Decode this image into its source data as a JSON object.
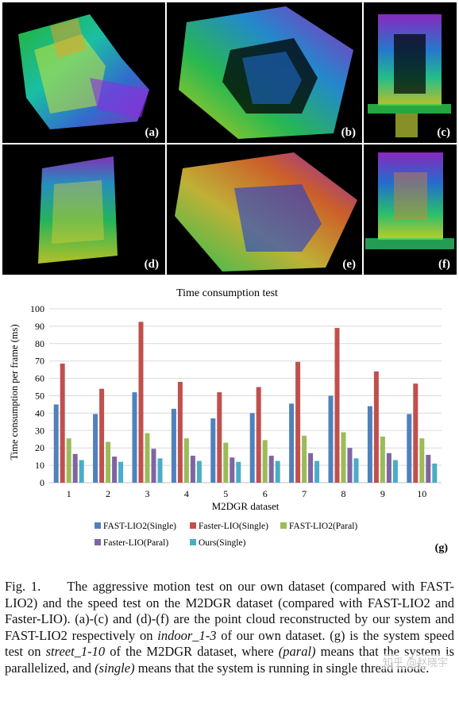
{
  "panels": [
    {
      "label": "(a)"
    },
    {
      "label": "(b)"
    },
    {
      "label": "(c)"
    },
    {
      "label": "(d)"
    },
    {
      "label": "(e)"
    },
    {
      "label": "(f)"
    }
  ],
  "chart_label": "(g)",
  "chart_data": {
    "type": "bar",
    "title": "Time consumption test",
    "xlabel": "M2DGR dataset",
    "ylabel": "Time consumption per frame (ms)",
    "ylim": [
      0,
      100
    ],
    "yticks": [
      0,
      10,
      20,
      30,
      40,
      50,
      60,
      70,
      80,
      90,
      100
    ],
    "grid": "horizontal",
    "legend_position": "bottom",
    "categories": [
      "1",
      "2",
      "3",
      "4",
      "5",
      "6",
      "7",
      "8",
      "9",
      "10"
    ],
    "series": [
      {
        "name": "FAST-LIO2(Single)",
        "color": "#4f81bd",
        "values": [
          45,
          39.5,
          52,
          42.5,
          37,
          40,
          45.5,
          50,
          44,
          39.5
        ]
      },
      {
        "name": "Faster-LIO(Single)",
        "color": "#c0504d",
        "values": [
          68.5,
          54,
          92.5,
          58,
          52,
          55,
          69.5,
          89,
          64,
          57
        ]
      },
      {
        "name": "FAST-LIO2(Paral)",
        "color": "#9bbb59",
        "values": [
          25.5,
          23.5,
          28.5,
          25.5,
          23,
          24.5,
          27,
          29,
          26.5,
          25.5
        ]
      },
      {
        "name": "Faster-LIO(Paral)",
        "color": "#8064a2",
        "values": [
          16.5,
          15,
          19.5,
          15.5,
          14.5,
          15.5,
          17,
          20,
          17,
          16
        ]
      },
      {
        "name": "Ours(Single)",
        "color": "#4bacc6",
        "values": [
          13,
          12,
          14,
          12.5,
          12,
          12.5,
          12.5,
          14,
          13,
          11
        ]
      }
    ]
  },
  "caption": {
    "prefix": "Fig. 1.",
    "part1": "The aggressive motion test on our own dataset (compared with FAST-LIO2) and the speed test on the M2DGR dataset (compared with FAST-LIO2 and Faster-LIO). (a)-(c) and (d)-(f) are the point cloud reconstructed by our system and FAST-LIO2 respectively on ",
    "em1": "indoor_1-3",
    "part2": " of our own dataset. (g) is the system speed test on ",
    "em2": "street_1-10",
    "part3": " of the M2DGR dataset, where ",
    "em3": "(paral)",
    "part4": " means that the system is parallelized, and ",
    "em4": "(single)",
    "part5": " means that the system is running in single thread mode."
  },
  "watermark": "知乎 @赵晓宇"
}
